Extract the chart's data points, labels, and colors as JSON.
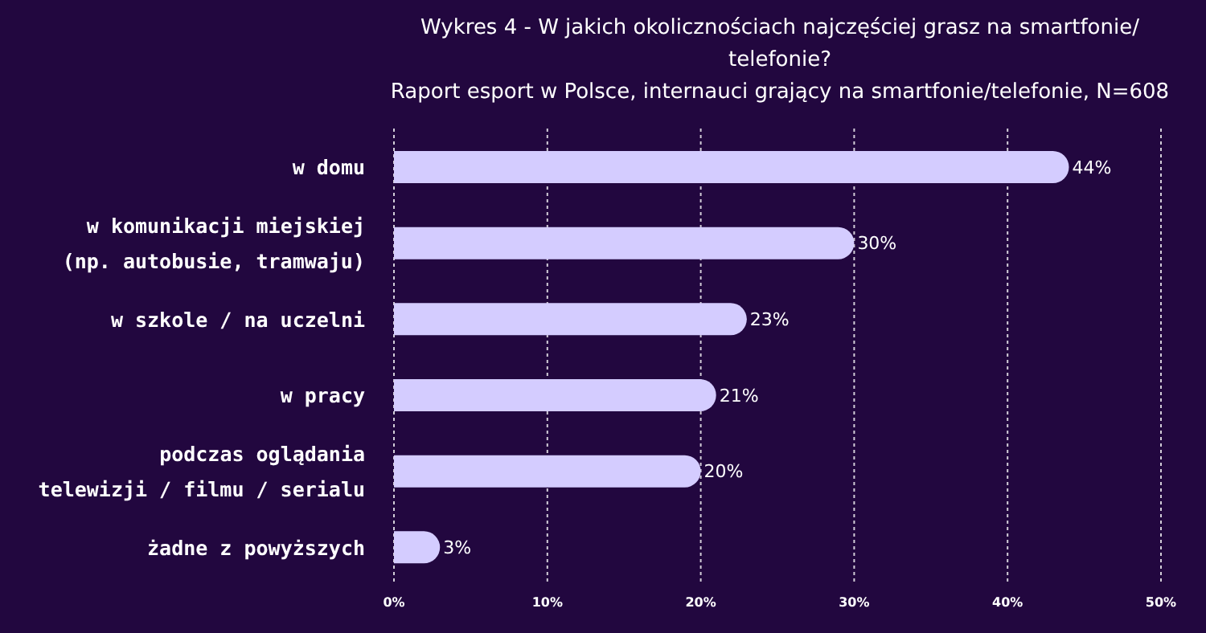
{
  "chart_data": {
    "type": "bar",
    "orientation": "horizontal",
    "title": "Wykres 4 - W jakich okolicznościach najczęściej grasz na smartfonie/ telefonie?",
    "subtitle": "Raport esport w Polsce, internauci grający na smartfonie/telefonie, N=608",
    "categories": [
      "w domu",
      "w komunikacji miejskiej\n(np. autobusie, tramwaju)",
      "w szkole / na uczelni",
      "w pracy",
      "podczas oglądania\ntelewizji / filmu / serialu",
      "żadne z powyższych"
    ],
    "values": [
      44,
      30,
      23,
      21,
      20,
      3
    ],
    "value_labels": [
      "44%",
      "30%",
      "23%",
      "21%",
      "20%",
      "3%"
    ],
    "color": "#d4ccff",
    "xlim": [
      0,
      50
    ],
    "xticks": [
      {
        "value": 0,
        "label": "0%"
      },
      {
        "value": 10,
        "label": "10%"
      },
      {
        "value": 20,
        "label": "20%"
      },
      {
        "value": 30,
        "label": "30%"
      },
      {
        "value": 40,
        "label": "40%"
      },
      {
        "value": 50,
        "label": "50%"
      }
    ],
    "grid": "x"
  }
}
